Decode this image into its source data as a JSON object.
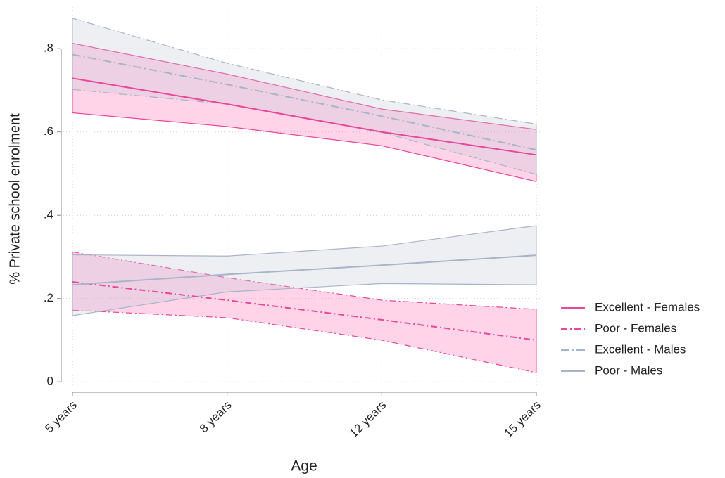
{
  "chart_data": {
    "type": "line",
    "x_label": "Age",
    "y_label": "% Private school enrolment",
    "categories": [
      "5 years",
      "8 years",
      "12 years",
      "15 years"
    ],
    "ylim": [
      -0.025,
      0.9
    ],
    "yticks": [
      0,
      {
        "value": 0.2,
        "label": ".2"
      },
      {
        "value": 0.4,
        "label": ".4"
      },
      {
        "value": 0.6,
        "label": ".6"
      },
      {
        "value": 0.8,
        "label": ".8"
      }
    ],
    "grid": true,
    "legend": "right",
    "series": [
      {
        "name": "Excellent - Females",
        "color": "#e8489a",
        "band_color": "#ff6eb4",
        "line_style": "solid",
        "values": [
          0.729,
          0.667,
          0.6,
          0.545
        ],
        "upper": [
          0.813,
          0.739,
          0.655,
          0.606
        ],
        "lower": [
          0.646,
          0.613,
          0.567,
          0.481
        ]
      },
      {
        "name": "Poor - Females",
        "color": "#e8489a",
        "band_color": "#ff6eb4",
        "line_style": "dashdot",
        "values": [
          0.24,
          0.196,
          0.149,
          0.1
        ],
        "upper": [
          0.312,
          0.25,
          0.196,
          0.174
        ],
        "lower": [
          0.172,
          0.154,
          0.1,
          0.022
        ]
      },
      {
        "name": "Excellent - Males",
        "color": "#a9b4c8",
        "band_color": "#c3cad8",
        "line_style": "longdashdot",
        "values": [
          0.786,
          0.714,
          0.638,
          0.557
        ],
        "upper": [
          0.873,
          0.765,
          0.677,
          0.619
        ],
        "lower": [
          0.702,
          0.667,
          0.599,
          0.498
        ]
      },
      {
        "name": "Poor - Males",
        "color": "#a9b4c8",
        "band_color": "#c3cad8",
        "line_style": "solid",
        "values": [
          0.233,
          0.258,
          0.28,
          0.304
        ],
        "upper": [
          0.305,
          0.302,
          0.326,
          0.375
        ],
        "lower": [
          0.159,
          0.216,
          0.236,
          0.233
        ]
      }
    ]
  }
}
